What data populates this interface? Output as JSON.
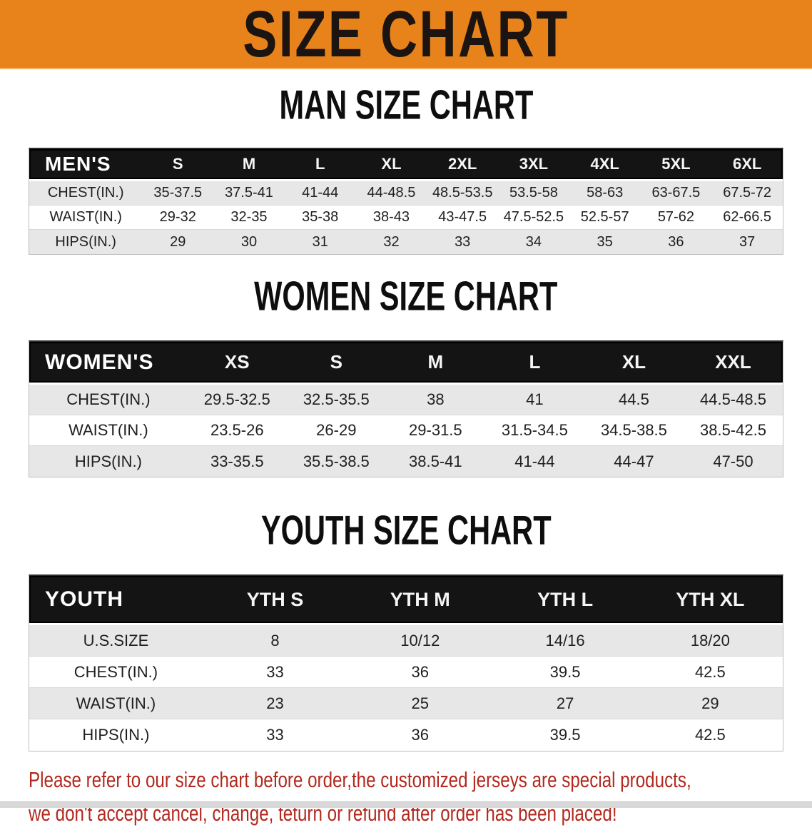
{
  "banner": {
    "title": "SIZE CHART",
    "bg_color": "#E8831C",
    "text_color": "#1b1410"
  },
  "colors": {
    "table_header_bar": "#141414",
    "row_stripe": "#e7e7e7",
    "footer_red": "#B2281E"
  },
  "sections": [
    {
      "heading": "MAN SIZE CHART",
      "table": {
        "header_label": "MEN'S",
        "columns": [
          "S",
          "M",
          "L",
          "XL",
          "2XL",
          "3XL",
          "4XL",
          "5XL",
          "6XL"
        ],
        "rows": [
          {
            "label": "CHEST(IN.)",
            "values": [
              "35-37.5",
              "37.5-41",
              "41-44",
              "44-48.5",
              "48.5-53.5",
              "53.5-58",
              "58-63",
              "63-67.5",
              "67.5-72"
            ]
          },
          {
            "label": "WAIST(IN.)",
            "values": [
              "29-32",
              "32-35",
              "35-38",
              "38-43",
              "43-47.5",
              "47.5-52.5",
              "52.5-57",
              "57-62",
              "62-66.5"
            ]
          },
          {
            "label": "HIPS(IN.)",
            "values": [
              "29",
              "30",
              "31",
              "32",
              "33",
              "34",
              "35",
              "36",
              "37"
            ]
          }
        ]
      }
    },
    {
      "heading": "WOMEN SIZE CHART",
      "table": {
        "header_label": "WOMEN'S",
        "columns": [
          "XS",
          "S",
          "M",
          "L",
          "XL",
          "XXL"
        ],
        "rows": [
          {
            "label": "CHEST(IN.)",
            "values": [
              "29.5-32.5",
              "32.5-35.5",
              "38",
              "41",
              "44.5",
              "44.5-48.5"
            ]
          },
          {
            "label": "WAIST(IN.)",
            "values": [
              "23.5-26",
              "26-29",
              "29-31.5",
              "31.5-34.5",
              "34.5-38.5",
              "38.5-42.5"
            ]
          },
          {
            "label": "HIPS(IN.)",
            "values": [
              "33-35.5",
              "35.5-38.5",
              "38.5-41",
              "41-44",
              "44-47",
              "47-50"
            ]
          }
        ]
      }
    },
    {
      "heading": "YOUTH SIZE CHART",
      "table": {
        "header_label": "YOUTH",
        "columns": [
          "YTH S",
          "YTH M",
          "YTH L",
          "YTH XL"
        ],
        "rows": [
          {
            "label": "U.S.SIZE",
            "values": [
              "8",
              "10/12",
              "14/16",
              "18/20"
            ]
          },
          {
            "label": "CHEST(IN.)",
            "values": [
              "33",
              "36",
              "39.5",
              "42.5"
            ]
          },
          {
            "label": "WAIST(IN.)",
            "values": [
              "23",
              "25",
              "27",
              "29"
            ]
          },
          {
            "label": "HIPS(IN.)",
            "values": [
              "33",
              "36",
              "39.5",
              "42.5"
            ]
          }
        ]
      }
    }
  ],
  "footer": {
    "line1": "Please refer to our size chart before order,the customized jerseys are special products,",
    "line2": "we don't accept cancel, change, teturn or refund after order has been placed!"
  }
}
